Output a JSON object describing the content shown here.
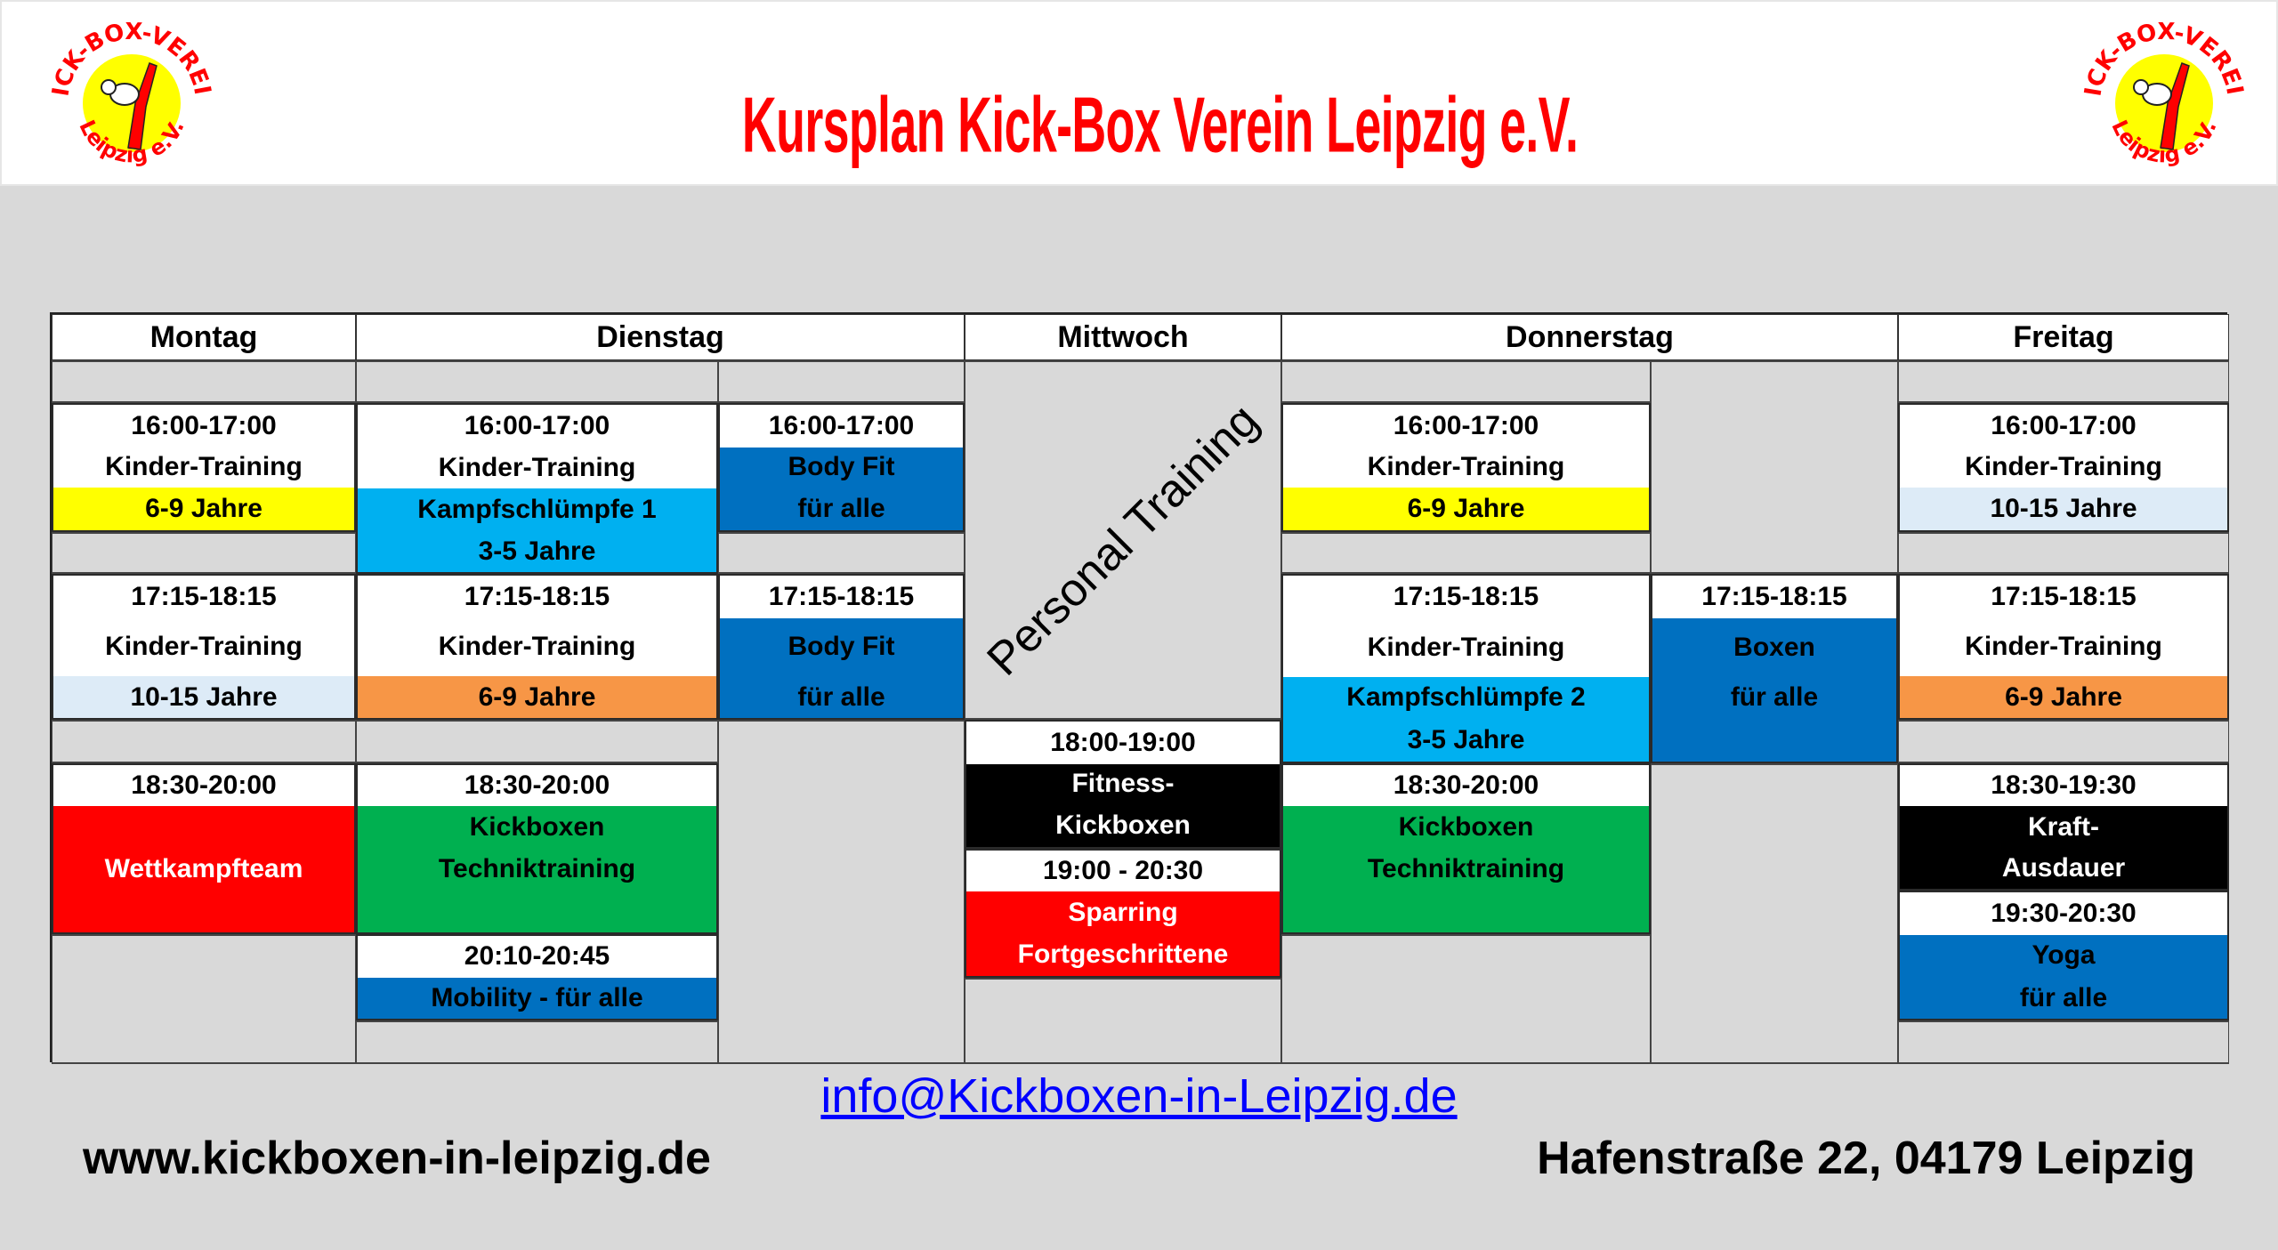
{
  "header": {
    "title": "Kursplan Kick-Box Verein Leipzig e.V.",
    "logo_top": "KICK-BOX-VEREIN",
    "logo_bottom": "Leipzig e.V."
  },
  "days": [
    "Montag",
    "Dienstag",
    "Mittwoch",
    "Donnerstag",
    "Freitag"
  ],
  "colors": {
    "title": "#FF0000",
    "yellow": "#FFFF00",
    "light_blue": "#DDEBF7",
    "cyan": "#00B0F0",
    "blue": "#0070C0",
    "orange": "#F79646",
    "green": "#00B050",
    "red": "#FF0000",
    "black": "#000000",
    "background": "#D9D9D9",
    "link": "#0000FF"
  },
  "montag": [
    {
      "time": "16:00-17:00",
      "title": "Kinder-Training",
      "group": "6-9 Jahre"
    },
    {
      "time": "17:15-18:15",
      "title": "Kinder-Training",
      "group": "10-15 Jahre"
    },
    {
      "time": "18:30-20:00",
      "title": "Wettkampfteam"
    }
  ],
  "dienstag": [
    {
      "time": "16:00-17:00",
      "title": "Kinder-Training",
      "line1": "Kampfschlümpfe 1",
      "group": "3-5 Jahre"
    },
    {
      "time": "16:00-17:00",
      "line1": "Body Fit",
      "line2": "für alle"
    },
    {
      "time": "17:15-18:15",
      "title": "Kinder-Training",
      "group": "6-9 Jahre"
    },
    {
      "time": "17:15-18:15",
      "line1": "Body Fit",
      "line2": "für alle"
    },
    {
      "time": "18:30-20:00",
      "line1": "Kickboxen",
      "line2": "Techniktraining"
    },
    {
      "time": "20:10-20:45",
      "title": "Mobility - für alle"
    }
  ],
  "mittwoch": [
    {
      "title": "Personal Training"
    },
    {
      "time": "18:00-19:00",
      "line1": "Fitness-",
      "line2": "Kickboxen"
    },
    {
      "time": "19:00 - 20:30",
      "line1": "Sparring",
      "line2": "Fortgeschrittene"
    }
  ],
  "donnerstag": [
    {
      "time": "16:00-17:00",
      "title": "Kinder-Training",
      "group": "6-9 Jahre"
    },
    {
      "time": "17:15-18:15",
      "title": "Kinder-Training",
      "line1": "Kampfschlümpfe 2",
      "group": "3-5 Jahre"
    },
    {
      "time": "17:15-18:15",
      "line1": "Boxen",
      "line2": "für alle"
    },
    {
      "time": "18:30-20:00",
      "line1": "Kickboxen",
      "line2": "Techniktraining"
    }
  ],
  "freitag": [
    {
      "time": "16:00-17:00",
      "title": "Kinder-Training",
      "group": "10-15 Jahre"
    },
    {
      "time": "17:15-18:15",
      "title": "Kinder-Training",
      "group": "6-9 Jahre"
    },
    {
      "time": "18:30-19:30",
      "line1": "Kraft-",
      "line2": "Ausdauer"
    },
    {
      "time": "19:30-20:30",
      "line1": "Yoga",
      "line2": "für alle"
    }
  ],
  "footer": {
    "email": "info@Kickboxen-in-Leipzig.de",
    "website": "www.kickboxen-in-leipzig.de",
    "address": "Hafenstraße 22, 04179 Leipzig"
  }
}
